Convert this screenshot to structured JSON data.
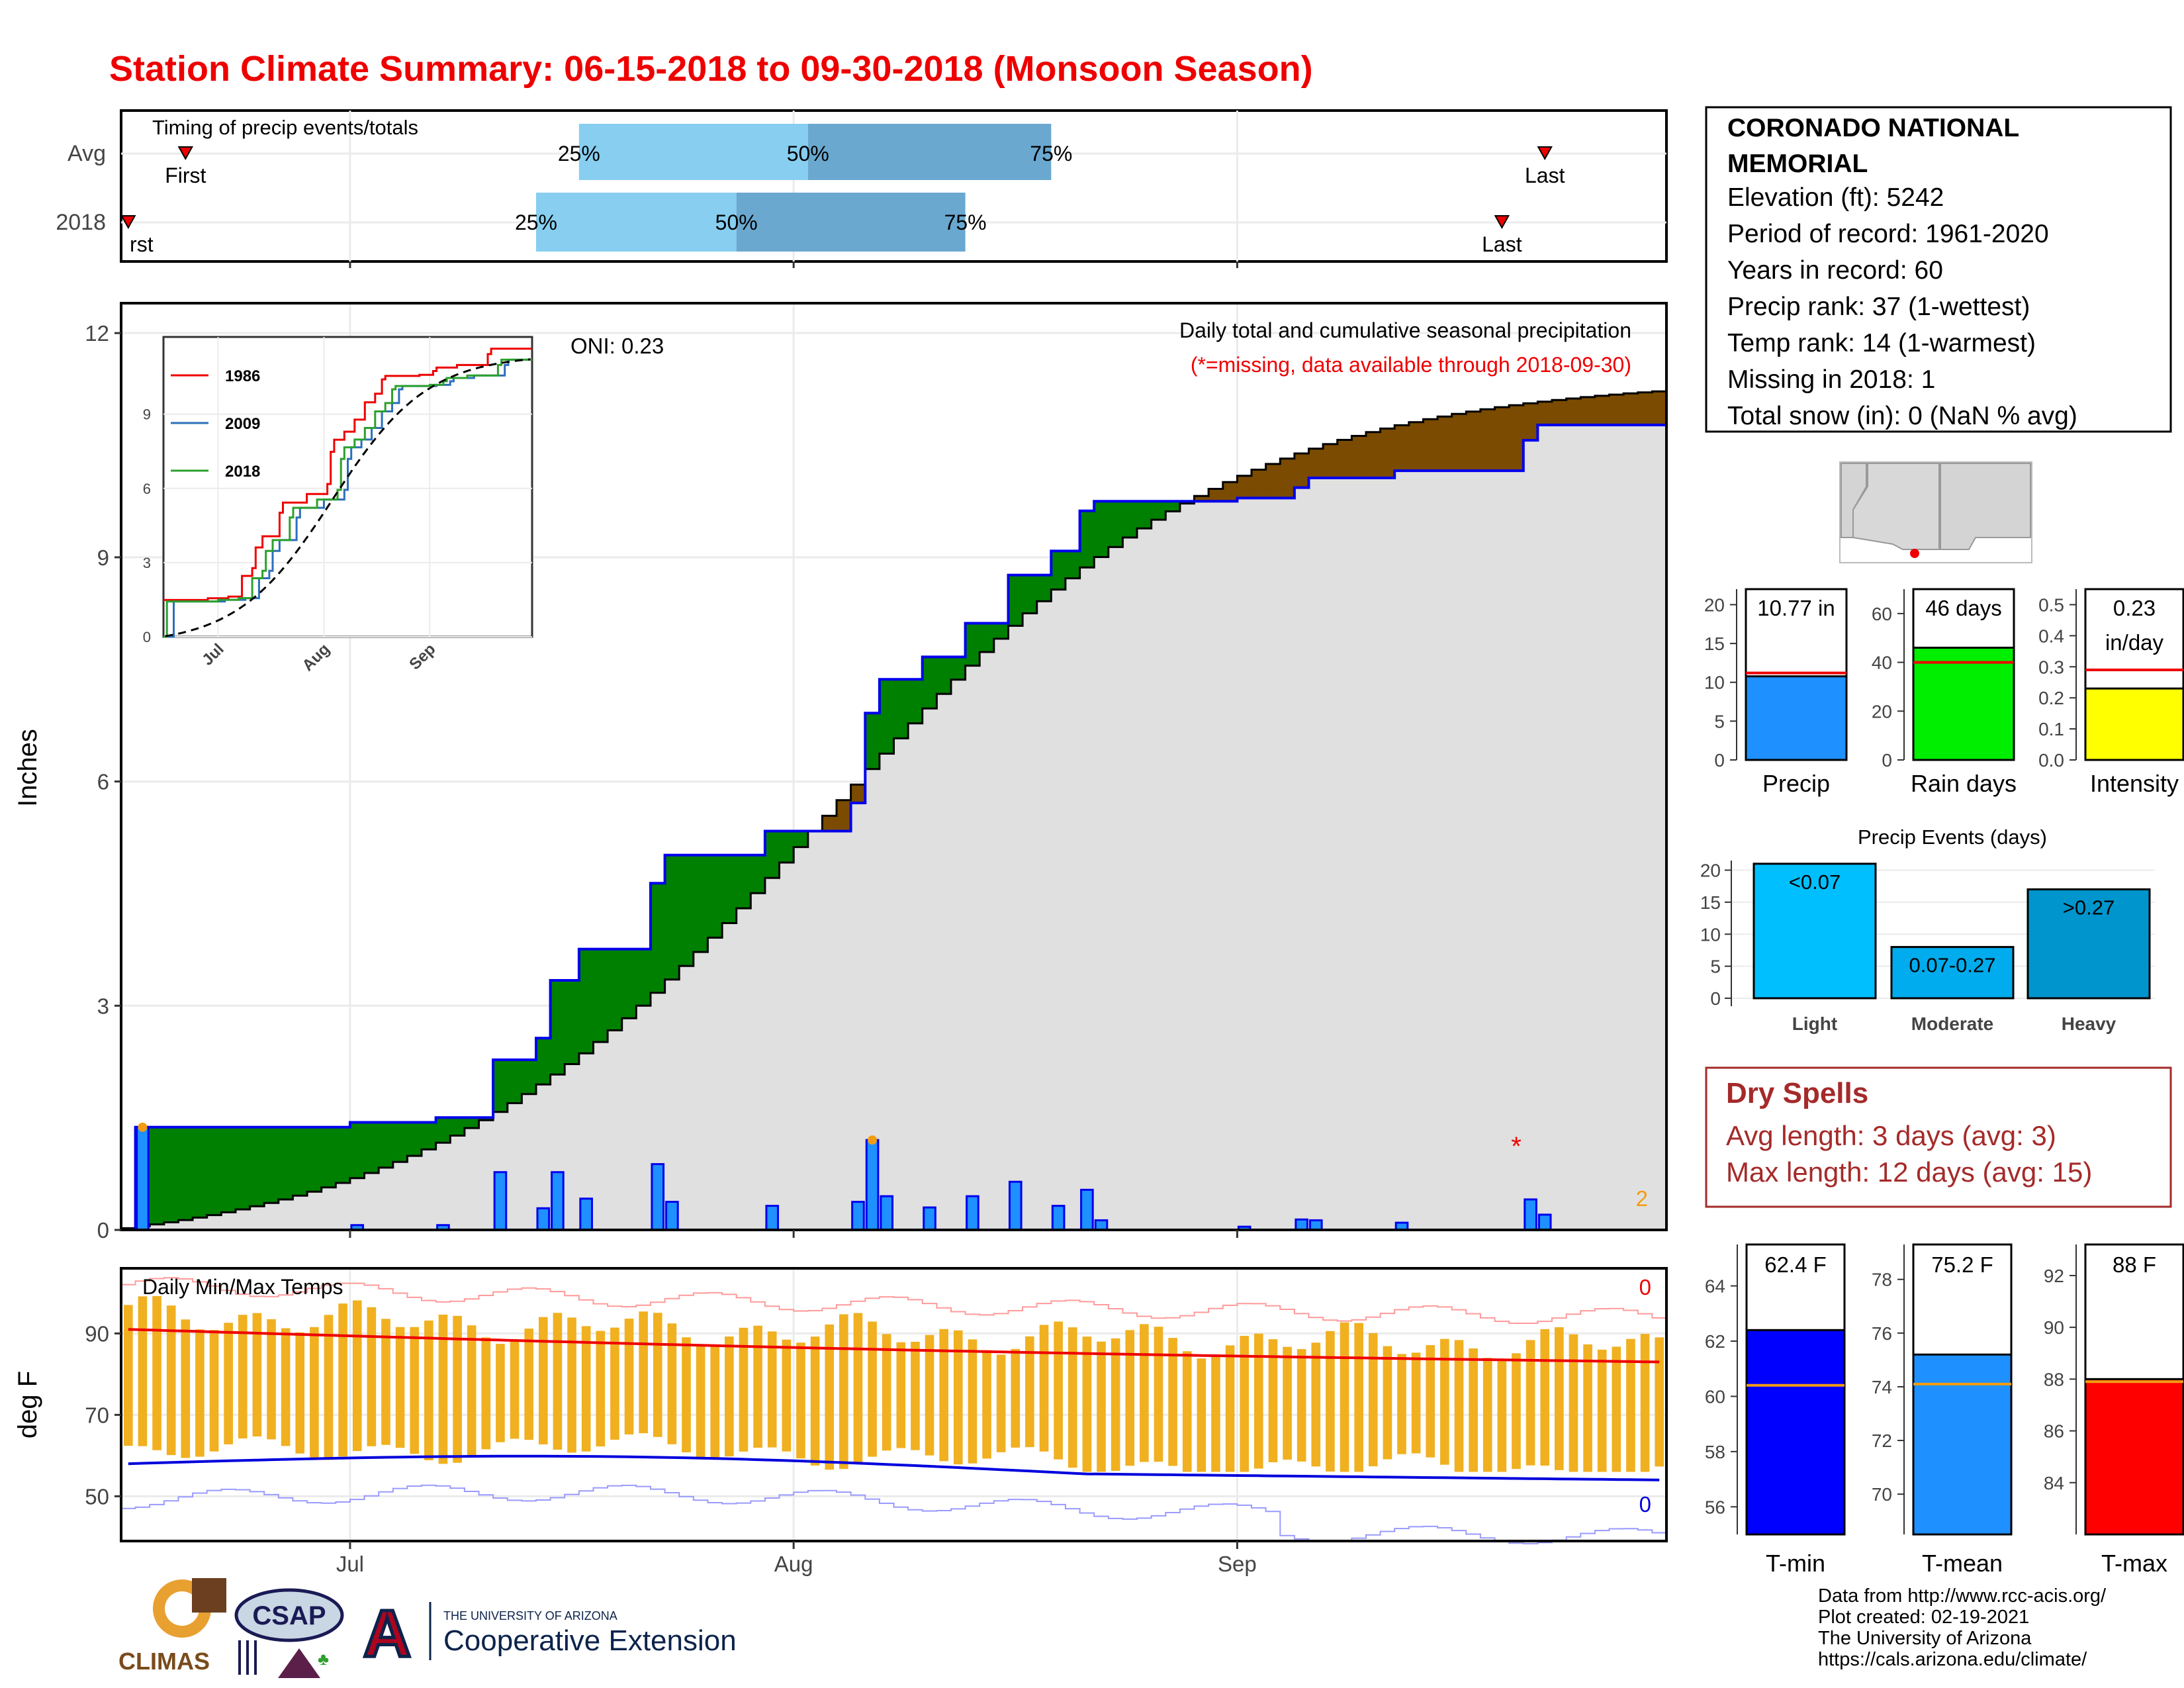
{
  "title": "Station Climate Summary: 06-15-2018 to 09-30-2018 (Monsoon Season)",
  "colors": {
    "title": "#ee0000",
    "above_avg": "#008000",
    "below_avg": "#7a4b00",
    "normal_fill": "#e0e0e0",
    "obs_line": "#0000ee",
    "daily_bar": "#1e90ff",
    "timing_light": "#87cef0",
    "timing_dark": "#6aa8d0",
    "temp_bar": "#f0b020",
    "tmax_line": "#ee0000",
    "tmin_line": "#0000dd",
    "dry_spell": "#a52a2a"
  },
  "timing": {
    "label": "Timing of precip events/totals",
    "avg_label": "Avg",
    "year_label": "2018",
    "first_label": "First",
    "last_label": "Last",
    "first_clip_label": "rst",
    "avg": {
      "first": "2018-06-19",
      "q25": "2018-07-17",
      "q50": "2018-08-02",
      "q75": "2018-08-19",
      "last": "2018-09-22"
    },
    "y2018": {
      "first": "2018-06-15",
      "q25": "2018-07-14",
      "q50": "2018-07-28",
      "q75": "2018-08-13",
      "last": "2018-09-19"
    },
    "pct_labels": [
      "25%",
      "50%",
      "75%"
    ]
  },
  "main_chart": {
    "ylabel": "Inches",
    "oni": "ONI: 0.23",
    "caption": "Daily total and cumulative seasonal precipitation",
    "missing_note": "(*=missing, data available through 2018-09-30)",
    "count_label": "2",
    "y_ticks": [
      "0",
      "3",
      "6",
      "9",
      "12"
    ]
  },
  "inset": {
    "legend": [
      {
        "name": "1986",
        "color": "#ee0000"
      },
      {
        "name": "2009",
        "color": "#2c6fbb"
      },
      {
        "name": "2018",
        "color": "#2ca02c"
      }
    ],
    "y_ticks": [
      "0",
      "3",
      "6",
      "9"
    ],
    "x_ticks": [
      "Jul",
      "Aug",
      "Sep"
    ]
  },
  "temp_chart": {
    "ylabel": "deg F",
    "label": "Daily Min/Max Temps",
    "record_high_count": "0",
    "record_low_count": "0",
    "y_ticks": [
      "50",
      "70",
      "90"
    ]
  },
  "x_ticks": [
    "Jul",
    "Aug",
    "Sep"
  ],
  "chart_data": {
    "type": "area",
    "x_range": [
      "2018-06-15",
      "2018-09-30"
    ],
    "ylim": [
      0,
      12.4
    ],
    "daily_precip": [
      {
        "date": "2018-06-16",
        "in": 1.28
      },
      {
        "date": "2018-07-01",
        "in": 0.06
      },
      {
        "date": "2018-07-07",
        "in": 0.06
      },
      {
        "date": "2018-07-11",
        "in": 0.72
      },
      {
        "date": "2018-07-14",
        "in": 0.27
      },
      {
        "date": "2018-07-15",
        "in": 0.72
      },
      {
        "date": "2018-07-17",
        "in": 0.39
      },
      {
        "date": "2018-07-22",
        "in": 0.82
      },
      {
        "date": "2018-07-23",
        "in": 0.35
      },
      {
        "date": "2018-07-30",
        "in": 0.3
      },
      {
        "date": "2018-08-05",
        "in": 0.35
      },
      {
        "date": "2018-08-06",
        "in": 1.12
      },
      {
        "date": "2018-08-07",
        "in": 0.42
      },
      {
        "date": "2018-08-10",
        "in": 0.28
      },
      {
        "date": "2018-08-13",
        "in": 0.42
      },
      {
        "date": "2018-08-16",
        "in": 0.6
      },
      {
        "date": "2018-08-19",
        "in": 0.3
      },
      {
        "date": "2018-08-21",
        "in": 0.5
      },
      {
        "date": "2018-08-22",
        "in": 0.12
      },
      {
        "date": "2018-09-01",
        "in": 0.04
      },
      {
        "date": "2018-09-05",
        "in": 0.13
      },
      {
        "date": "2018-09-06",
        "in": 0.12
      },
      {
        "date": "2018-09-12",
        "in": 0.09
      },
      {
        "date": "2018-09-21",
        "in": 0.38
      },
      {
        "date": "2018-09-22",
        "in": 0.19
      }
    ],
    "missing_dates": [
      "2018-09-20"
    ],
    "avg_cumulative_end": 11.22,
    "obs_cumulative_end": 10.77,
    "temps": {
      "tmax_avg_start": 91,
      "tmax_avg_end": 83,
      "tmin_avg_start": 58,
      "tmin_avg_end": 54
    }
  },
  "station": {
    "name_line1": "CORONADO NATIONAL",
    "name_line2": "MEMORIAL",
    "elevation": "Elevation (ft): 5242",
    "period": "Period of record: 1961-2020",
    "years": "Years in record: 60",
    "precip_rank": "Precip rank: 37 (1-wettest)",
    "temp_rank": "Temp rank: 14 (1-warmest)",
    "missing": "Missing in 2018: 1",
    "snow": "Total snow (in): 0 (NaN % avg)"
  },
  "summary_bars": [
    {
      "label": "Precip",
      "value_label": "10.77 in",
      "value": 10.77,
      "avg": 11.2,
      "max": 22,
      "ticks": [
        "0",
        "5",
        "10",
        "15",
        "20"
      ],
      "tick_vals": [
        0,
        5,
        10,
        15,
        20
      ],
      "color": "#1e90ff"
    },
    {
      "label": "Rain days",
      "value_label": "46 days",
      "value": 46,
      "avg": 40,
      "max": 70,
      "ticks": [
        "0",
        "20",
        "40",
        "60"
      ],
      "tick_vals": [
        0,
        20,
        40,
        60
      ],
      "color": "#00ee00"
    },
    {
      "label": "Intensity",
      "value_label_1": "0.23",
      "value_label_2": "in/day",
      "value": 0.23,
      "avg": 0.29,
      "max": 0.55,
      "ticks": [
        "0.0",
        "0.1",
        "0.2",
        "0.3",
        "0.4",
        "0.5"
      ],
      "tick_vals": [
        0,
        0.1,
        0.2,
        0.3,
        0.4,
        0.5
      ],
      "color": "#ffff00"
    }
  ],
  "precip_events": {
    "title": "Precip Events (days)",
    "ticks": [
      "0",
      "5",
      "10",
      "15",
      "20"
    ],
    "tick_vals": [
      0,
      5,
      10,
      15,
      20
    ],
    "bars": [
      {
        "label": "Light",
        "value": 21,
        "text": "<0.07",
        "color": "#00bfff"
      },
      {
        "label": "Moderate",
        "value": 8,
        "text": "0.07-0.27",
        "color": "#00aced"
      },
      {
        "label": "Heavy",
        "value": 17,
        "text": ">0.27",
        "color": "#0095cc"
      }
    ]
  },
  "dry_spells": {
    "title": "Dry Spells",
    "avg": "Avg length: 3 days (avg: 3)",
    "max": "Max length: 12 days (avg: 15)"
  },
  "temp_bars": [
    {
      "label": "T-min",
      "value_label": "62.4 F",
      "value": 62.4,
      "avg": 60.4,
      "lo": 55,
      "hi": 65.5,
      "ticks": [
        "56",
        "58",
        "60",
        "62",
        "64"
      ],
      "tick_vals": [
        56,
        58,
        60,
        62,
        64
      ],
      "color": "#0000ff"
    },
    {
      "label": "T-mean",
      "value_label": "75.2 F",
      "value": 75.2,
      "avg": 74.1,
      "lo": 68.5,
      "hi": 79.3,
      "ticks": [
        "70",
        "72",
        "74",
        "76",
        "78"
      ],
      "tick_vals": [
        70,
        72,
        74,
        76,
        78
      ],
      "color": "#1e90ff"
    },
    {
      "label": "T-max",
      "value_label": "88 F",
      "value": 88,
      "avg": 87.9,
      "lo": 82,
      "hi": 93.2,
      "ticks": [
        "84",
        "86",
        "88",
        "90",
        "92"
      ],
      "tick_vals": [
        84,
        86,
        88,
        90,
        92
      ],
      "color": "#ff0000"
    }
  ],
  "footer": {
    "source": "Data from http://www.rcc-acis.org/",
    "created": "Plot created: 02-19-2021",
    "org": "The University of Arizona",
    "url": "https://cals.arizona.edu/climate/",
    "logo_climas": "CLIMAS",
    "logo_csap": "CSAP",
    "logo_ua": "A",
    "ua_small": "THE UNIVERSITY OF ARIZONA",
    "ua_big": "Cooperative Extension"
  }
}
